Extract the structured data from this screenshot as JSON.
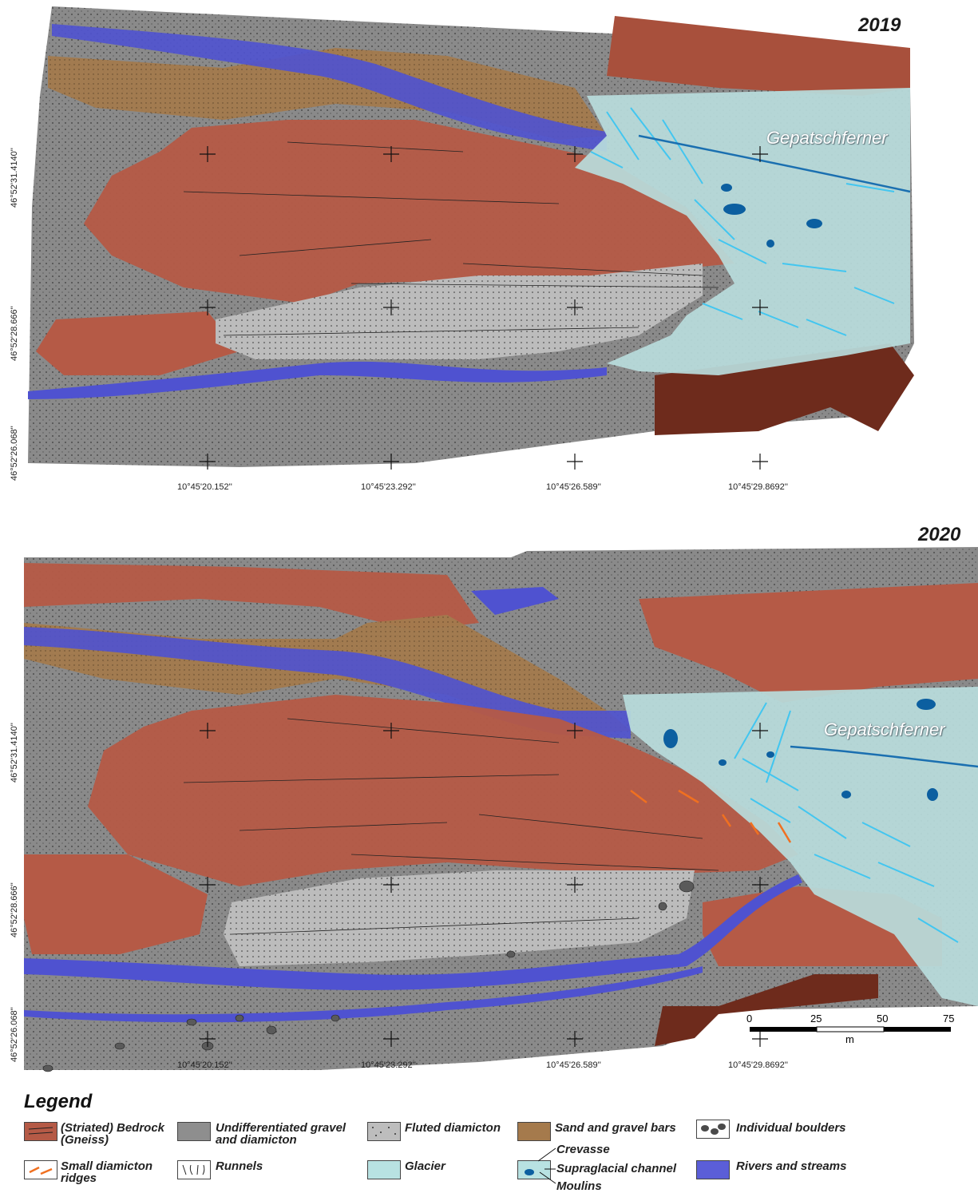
{
  "panels": [
    {
      "year": "2019",
      "glacier_label": "Gepatschferner"
    },
    {
      "year": "2020",
      "glacier_label": "Gepatschferner"
    }
  ],
  "latitudes": [
    "46°52'31.4140''",
    "46°52'28.666''",
    "46°52'26.068''"
  ],
  "longitudes": [
    "10°45'20.152''",
    "10°45'23.292''",
    "10°45'26.589''",
    "10°45'29.8692''"
  ],
  "scale": {
    "ticks": [
      "0",
      "25",
      "50",
      "75"
    ],
    "unit": "m"
  },
  "legend": {
    "title": "Legend",
    "items": [
      {
        "id": "bedrock",
        "label": "(Striated) Bedrock (Gneiss)",
        "color": "#b55a46"
      },
      {
        "id": "gravel",
        "label": "Undifferentiated gravel and diamicton",
        "color": "#8e8e8e"
      },
      {
        "id": "fluted",
        "label": "Fluted diamicton",
        "color": "#bdbdbd"
      },
      {
        "id": "sand",
        "label": "Sand and gravel bars",
        "color": "#a57a4c"
      },
      {
        "id": "boulders",
        "label": "Individual boulders",
        "color": "#4a4a4a"
      },
      {
        "id": "ridges",
        "label": "Small diamicton ridges",
        "color": "#f07020"
      },
      {
        "id": "runnels",
        "label": "Runnels",
        "color": "#222222"
      },
      {
        "id": "glacier",
        "label": "Glacier",
        "color": "#b8e2e2"
      },
      {
        "id": "crevasse",
        "label": "Crevasse",
        "color": "#42c6f0"
      },
      {
        "id": "supraglacial",
        "label": "Supraglacial channel",
        "color": "#1a6fb0"
      },
      {
        "id": "moulins",
        "label": "Moulins",
        "color": "#0c5fa0"
      },
      {
        "id": "rivers",
        "label": "Rivers and streams",
        "color": "#5b5ed8"
      }
    ]
  }
}
